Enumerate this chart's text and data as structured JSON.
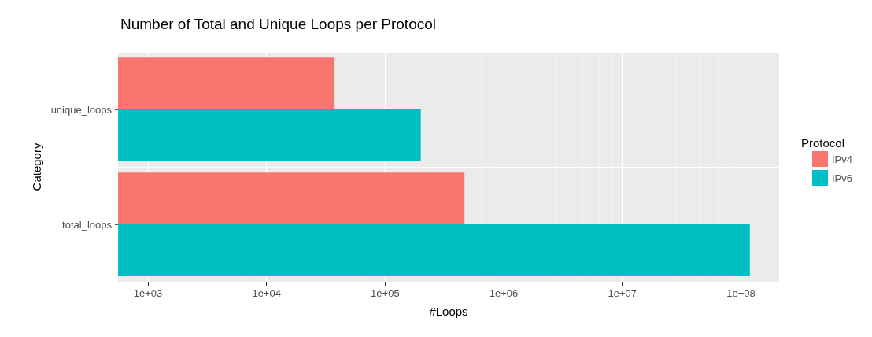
{
  "chart_data": {
    "type": "bar",
    "orientation": "horizontal",
    "title": "Number of Total and Unique Loops per Protocol",
    "xlabel": "#Loops",
    "ylabel": "Category",
    "legend_title": "Protocol",
    "legend": "right",
    "grid": true,
    "log": "x",
    "categories": [
      "unique_loops",
      "total_loops"
    ],
    "series": [
      {
        "name": "IPv4",
        "color": "#f8766d",
        "values": [
          37500,
          467000
        ]
      },
      {
        "name": "IPv6",
        "color": "#00bfc4",
        "values": [
          200000,
          119000000
        ]
      }
    ],
    "xlim": [
      560,
      210000000
    ],
    "xticks": [
      {
        "value": 1000,
        "label": "1e+03"
      },
      {
        "value": 10000,
        "label": "1e+04"
      },
      {
        "value": 100000,
        "label": "1e+05"
      },
      {
        "value": 1000000,
        "label": "1e+06"
      },
      {
        "value": 10000000,
        "label": "1e+07"
      },
      {
        "value": 100000000,
        "label": "1e+08"
      }
    ]
  }
}
